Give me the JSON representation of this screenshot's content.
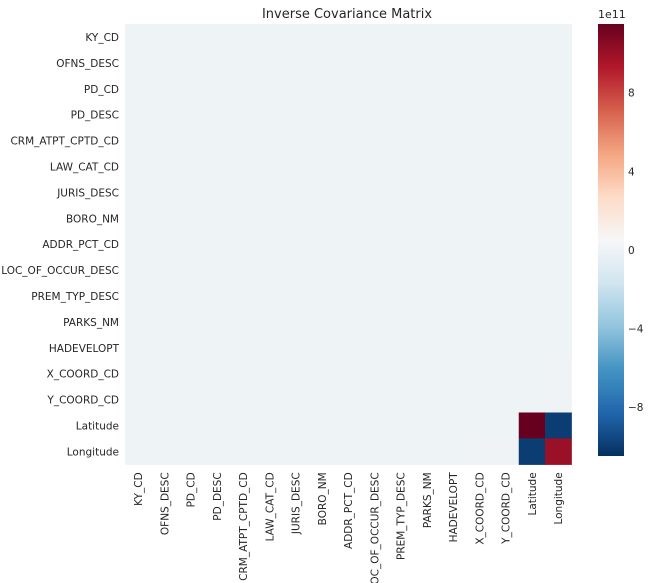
{
  "chart_data": {
    "type": "heatmap",
    "title": "Inverse Covariance Matrix",
    "labels": [
      "KY_CD",
      "OFNS_DESC",
      "PD_CD",
      "PD_DESC",
      "CRM_ATPT_CPTD_CD",
      "LAW_CAT_CD",
      "JURIS_DESC",
      "BORO_NM",
      "ADDR_PCT_CD",
      "LOC_OF_OCCUR_DESC",
      "PREM_TYP_DESC",
      "PARKS_NM",
      "HADEVELOPT",
      "X_COORD_CD",
      "Y_COORD_CD",
      "Latitude",
      "Longitude"
    ],
    "default_value": 0,
    "cells": [
      {
        "row": "X_COORD_CD",
        "col": "Latitude",
        "value": -5000000000.0
      },
      {
        "row": "X_COORD_CD",
        "col": "Longitude",
        "value": 4000000000.0
      },
      {
        "row": "Y_COORD_CD",
        "col": "Longitude",
        "value": 1500000000.0
      },
      {
        "row": "Latitude",
        "col": "X_COORD_CD",
        "value": -5000000000.0
      },
      {
        "row": "Latitude",
        "col": "Latitude",
        "value": 1150000000000.0
      },
      {
        "row": "Latitude",
        "col": "Longitude",
        "value": -1000000000000.0
      },
      {
        "row": "Longitude",
        "col": "X_COORD_CD",
        "value": 4000000000.0
      },
      {
        "row": "Longitude",
        "col": "Y_COORD_CD",
        "value": 1500000000.0
      },
      {
        "row": "Longitude",
        "col": "Latitude",
        "value": -1000000000000.0
      },
      {
        "row": "Longitude",
        "col": "Longitude",
        "value": 1000000000000.0
      }
    ],
    "colorbar": {
      "colormap": "RdBu_r",
      "vmin": -1050000000000.0,
      "vmax": 1150000000000.0,
      "ticks": [
        -800000000000.0,
        -400000000000.0,
        0,
        400000000000.0,
        800000000000.0
      ],
      "tick_labels": [
        "−8",
        "−4",
        "0",
        "4",
        "8"
      ],
      "offset_label": "1e11"
    },
    "grid": false
  }
}
